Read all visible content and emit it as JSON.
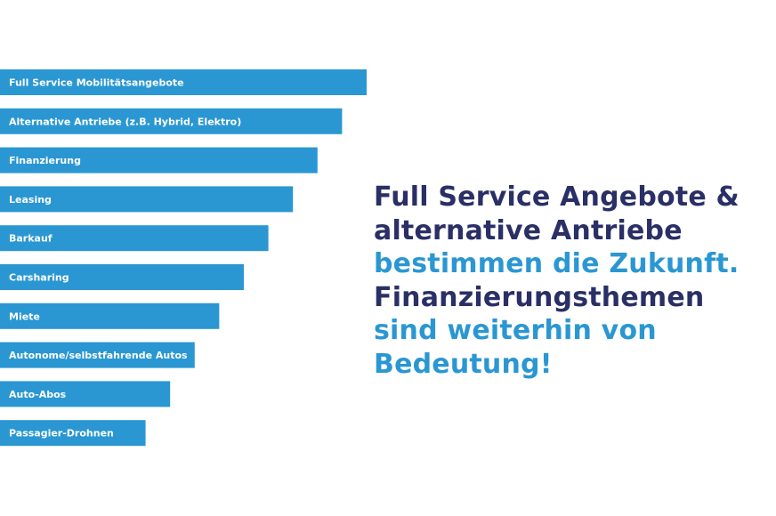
{
  "colors": {
    "bar": "#2a97d2",
    "bar_label": "#ffffff",
    "headline_dark": "#2a2f66",
    "headline_light": "#2a97d2"
  },
  "chart_data": {
    "type": "bar",
    "orientation": "horizontal",
    "categories": [
      "Full Service Mobilitätsangebote",
      "Alternative Antriebe (z.B. Hybrid, Elektro)",
      "Finanzierung",
      "Leasing",
      "Barkauf",
      "Carsharing",
      "Miete",
      "Autonome/selbstfahrende Autos",
      "Auto-Abos",
      "Passagier-Drohnen"
    ],
    "values": [
      100,
      93.3,
      86.6,
      79.9,
      73.2,
      66.5,
      59.8,
      53.1,
      46.4,
      39.7
    ],
    "value_scale": "relative (no axis or data labels shown)",
    "xlim": [
      0,
      100
    ],
    "grid": false,
    "legend": "none"
  },
  "headline": {
    "line1": "Full Service Angebote &",
    "line2": "alternative Antriebe",
    "line3": "bestimmen die Zukunft.",
    "line4": "Finanzierungsthemen",
    "line5": "sind weiterhin von",
    "line6": "Bedeutung!"
  }
}
